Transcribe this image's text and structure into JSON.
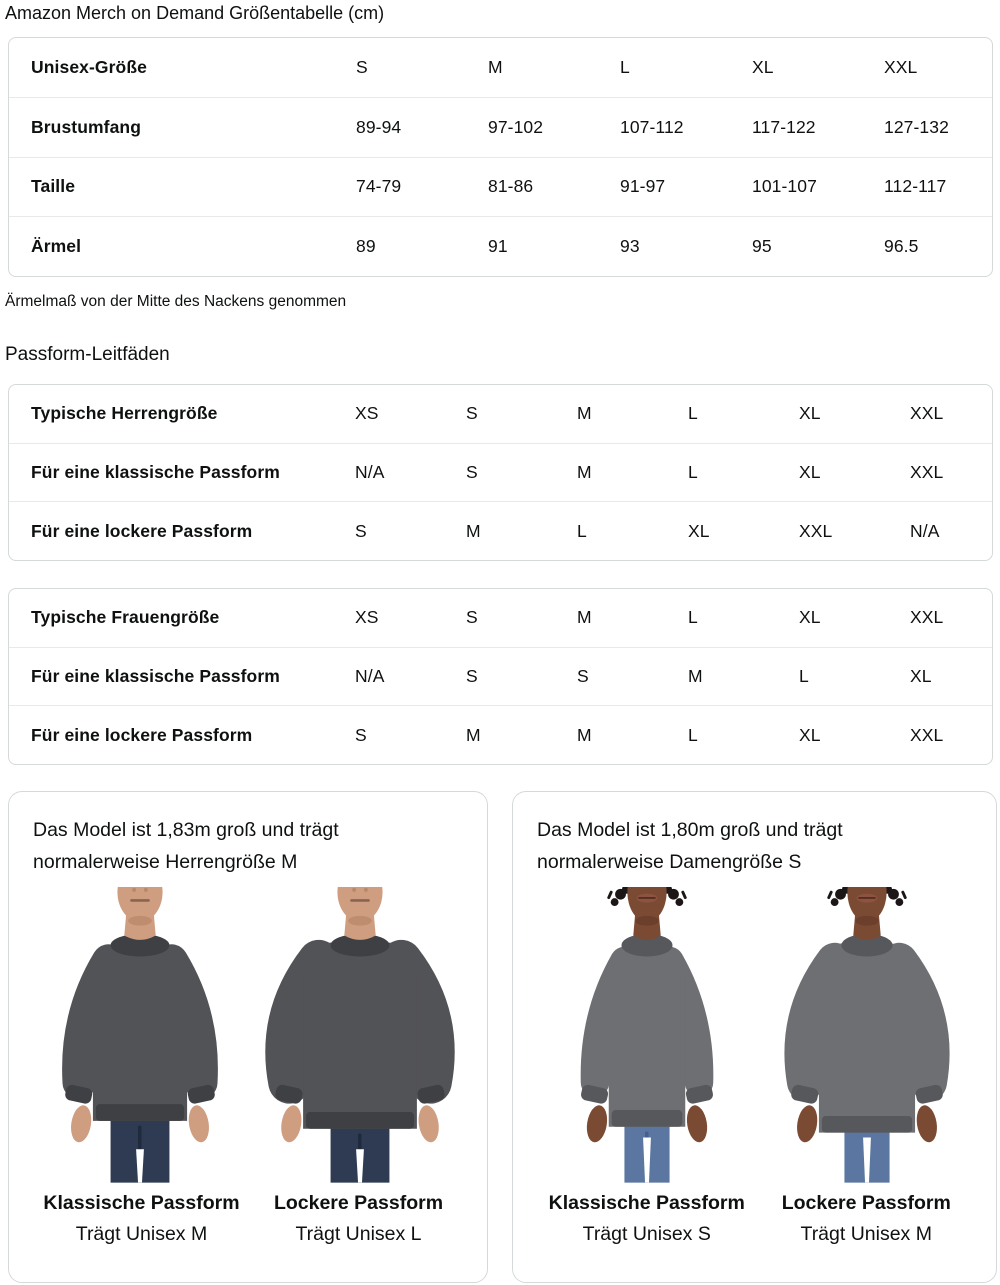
{
  "title": "Amazon Merch on Demand Größentabelle (cm)",
  "size_table": {
    "rows": [
      {
        "label": "Unisex-Größe",
        "values": [
          "S",
          "M",
          "L",
          "XL",
          "XXL"
        ]
      },
      {
        "label": "Brustumfang",
        "values": [
          "89-94",
          "97-102",
          "107-112",
          "117-122",
          "127-132"
        ]
      },
      {
        "label": "Taille",
        "values": [
          "74-79",
          "81-86",
          "91-97",
          "101-107",
          "112-117"
        ]
      },
      {
        "label": "Ärmel",
        "values": [
          "89",
          "91",
          "93",
          "95",
          "96.5"
        ]
      }
    ]
  },
  "sleeve_note": "Ärmelmaß von der Mitte des Nackens genommen",
  "fit_guides_heading": "Passform-Leitfäden",
  "mens_table": {
    "rows": [
      {
        "label": "Typische Herrengröße",
        "values": [
          "XS",
          "S",
          "M",
          "L",
          "XL",
          "XXL"
        ]
      },
      {
        "label": "Für eine klassische Passform",
        "values": [
          "N/A",
          "S",
          "M",
          "L",
          "XL",
          "XXL"
        ]
      },
      {
        "label": "Für eine lockere Passform",
        "values": [
          "S",
          "M",
          "L",
          "XL",
          "XXL",
          "N/A"
        ]
      }
    ]
  },
  "womens_table": {
    "rows": [
      {
        "label": "Typische Frauengröße",
        "values": [
          "XS",
          "S",
          "M",
          "L",
          "XL",
          "XXL"
        ]
      },
      {
        "label": "Für eine klassische Passform",
        "values": [
          "N/A",
          "S",
          "S",
          "M",
          "L",
          "XL"
        ]
      },
      {
        "label": "Für eine lockere Passform",
        "values": [
          "S",
          "M",
          "M",
          "L",
          "XL",
          "XXL"
        ]
      }
    ]
  },
  "cards": [
    {
      "intro": "Das Model ist 1,83m groß und trägt normalerweise Herrengröße M",
      "fits": [
        {
          "name": "Klassische Passform",
          "wears": "Trägt Unisex M",
          "figure": "male_classic"
        },
        {
          "name": "Lockere Passform",
          "wears": "Trägt Unisex L",
          "figure": "male_loose"
        }
      ]
    },
    {
      "intro": "Das Model ist 1,80m groß und trägt normalerweise Damengröße S",
      "fits": [
        {
          "name": "Klassische Passform",
          "wears": "Trägt Unisex S",
          "figure": "female_classic"
        },
        {
          "name": "Lockere Passform",
          "wears": "Trägt Unisex M",
          "figure": "female_loose"
        }
      ]
    }
  ],
  "figures": [
    {
      "id": "male_classic",
      "model": "male",
      "fit": "classic"
    },
    {
      "id": "male_loose",
      "model": "male",
      "fit": "loose"
    },
    {
      "id": "female_classic",
      "model": "female",
      "fit": "classic"
    },
    {
      "id": "female_loose",
      "model": "female",
      "fit": "loose"
    }
  ],
  "colors": {
    "text": "#0f1111",
    "table_border": "#d5d9d9",
    "row_separator": "#e7e9ea",
    "card_border": "#d5d9d9",
    "palettes": {
      "male": {
        "skin": "#cf9d80",
        "skin_shadow": "#a97a5c",
        "shirt": "#525357",
        "shirt_dark": "#3f4043",
        "jeans": "#2e3b52",
        "jeans_dark": "#1f2a3d",
        "mouth": "#7c5a47"
      },
      "female": {
        "skin": "#7b4a33",
        "skin_shadow": "#5c3423",
        "shirt": "#6e6f73",
        "shirt_dark": "#57585c",
        "jeans": "#5b77a1",
        "jeans_dark": "#44618c",
        "mouth": "#4a2a20",
        "lip": "#8e5240",
        "hair": "#1c1617"
      }
    }
  }
}
